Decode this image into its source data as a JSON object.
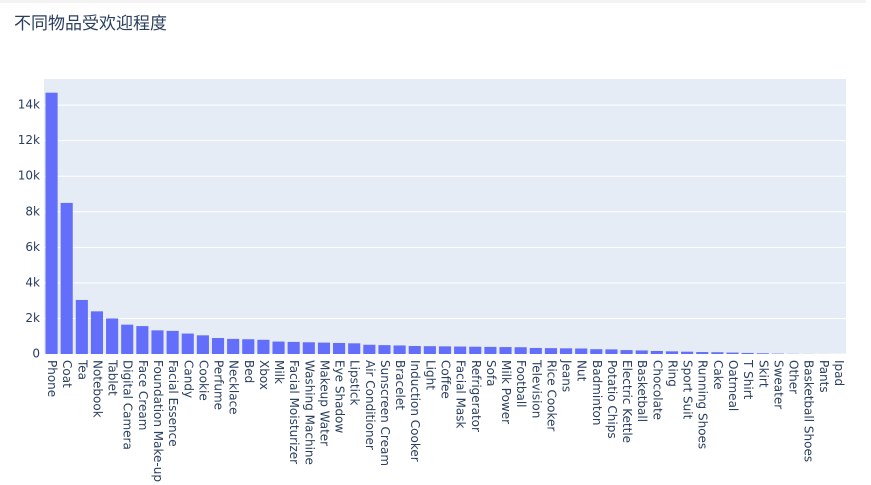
{
  "chart_data": {
    "type": "bar",
    "title": "不同物品受欢迎程度",
    "categories": [
      "Phone",
      "Coat",
      "Tea",
      "Notebook",
      "Tablet",
      "Digital Camera",
      "Face Cream",
      "Foundation Make-up",
      "Facial Essence",
      "Candy",
      "Cookie",
      "Perfume",
      "Necklace",
      "Bed",
      "Xbox",
      "Milk",
      "Facial Moisturizer",
      "Washing Machine",
      "Makeup Water",
      "Eye Shadow",
      "Lipstick",
      "Air Conditioner",
      "Sunscreen Cream",
      "Bracelet",
      "Induction Cooker",
      "Light",
      "Coffee",
      "Facial Mask",
      "Refrigerator",
      "Sofa",
      "Milk Power",
      "Football",
      "Television",
      "Rice Cooker",
      "Jeans",
      "Nut",
      "Badminton",
      "Potatio Chips",
      "Electric Kettle",
      "Basketball",
      "Chocolate",
      "Ring",
      "Sport Suit",
      "Running Shoes",
      "Cake",
      "Oatmeal",
      "T Shirt",
      "Skirt",
      "Sweater",
      "Other",
      "Basketball Shoes",
      "Pants",
      "Ipad"
    ],
    "values": [
      14700,
      8500,
      3040,
      2400,
      2000,
      1650,
      1570,
      1330,
      1300,
      1150,
      1050,
      900,
      850,
      830,
      800,
      700,
      680,
      660,
      640,
      620,
      600,
      520,
      500,
      480,
      450,
      440,
      430,
      420,
      410,
      400,
      390,
      380,
      340,
      330,
      320,
      310,
      270,
      260,
      220,
      200,
      170,
      150,
      130,
      110,
      100,
      80,
      60,
      40,
      20,
      10,
      5,
      3,
      1
    ],
    "color": "#636efa",
    "ylim": [
      0,
      15470
    ],
    "yticks": [
      0,
      {
        "value": 2000,
        "label": "2k"
      },
      {
        "value": 4000,
        "label": "4k"
      },
      {
        "value": 6000,
        "label": "6k"
      },
      {
        "value": 8000,
        "label": "8k"
      },
      {
        "value": 10000,
        "label": "10k"
      },
      {
        "value": 12000,
        "label": "12k"
      },
      {
        "value": 14000,
        "label": "14k"
      }
    ],
    "grid": true
  }
}
